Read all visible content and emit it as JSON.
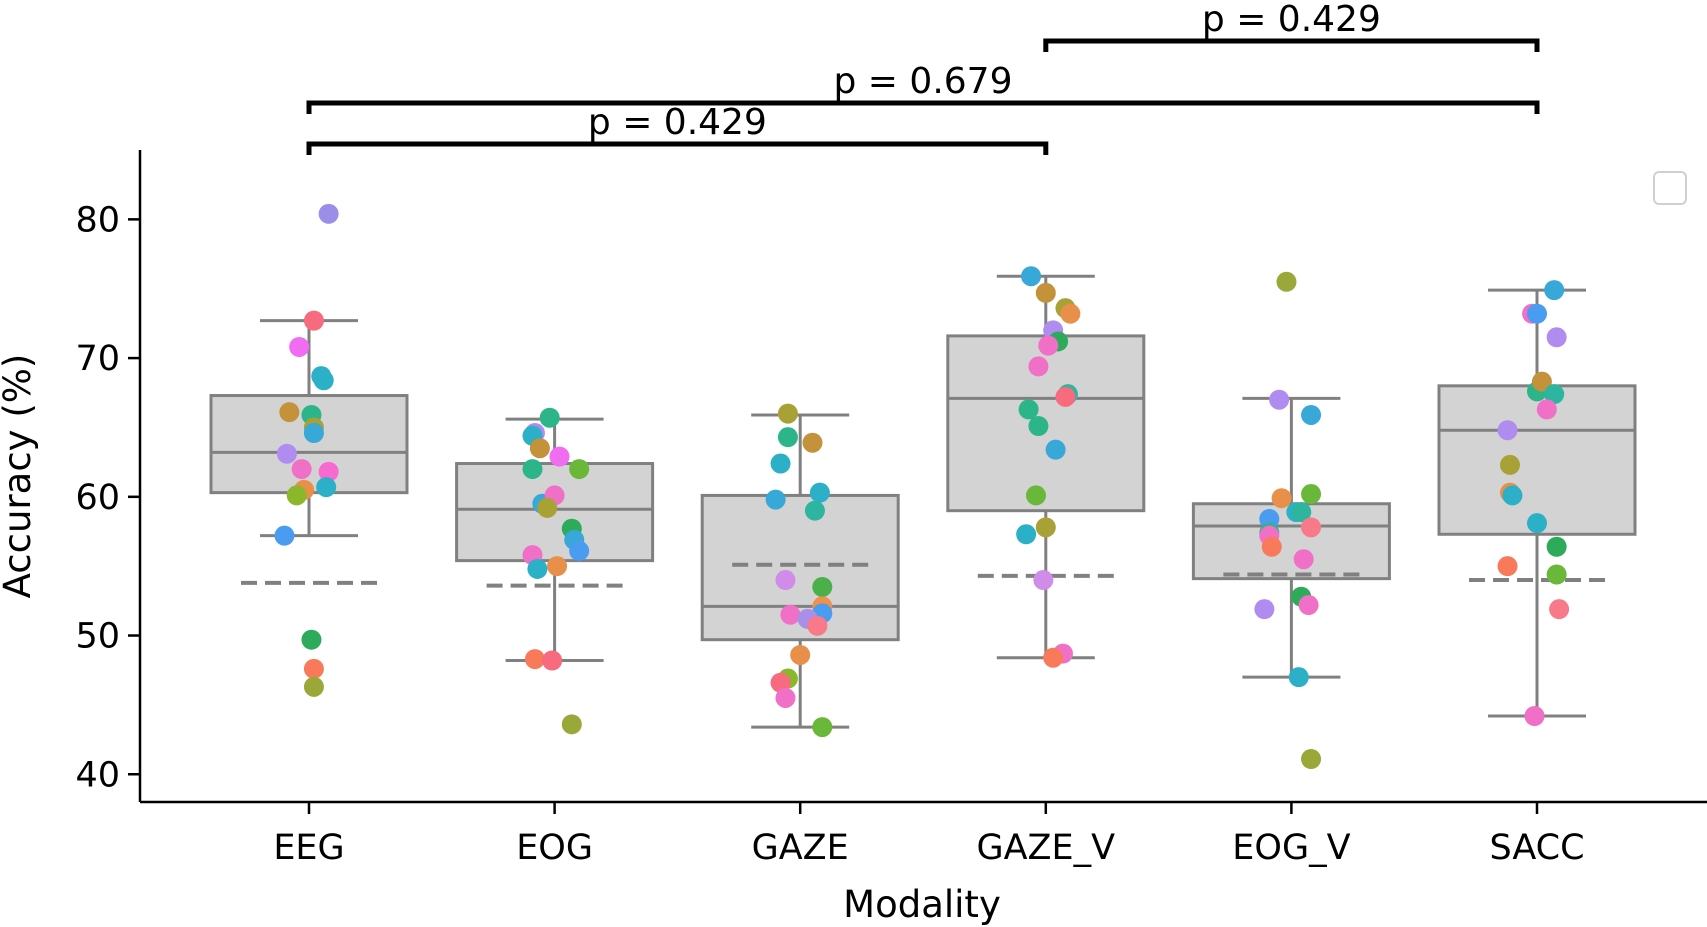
{
  "chart_data": {
    "type": "box",
    "xlabel": "Modality",
    "ylabel": "Accuracy (%)",
    "ylim": [
      38,
      85
    ],
    "yticks": [
      40,
      50,
      60,
      70,
      80
    ],
    "categories": [
      "EEG",
      "EOG",
      "GAZE",
      "GAZE_V",
      "EOG_V",
      "SACC"
    ],
    "boxes": [
      {
        "whisker_low": 57.2,
        "q1": 60.3,
        "median": 63.2,
        "q3": 67.3,
        "whisker_high": 72.7,
        "chance": 53.8
      },
      {
        "whisker_low": 48.2,
        "q1": 55.4,
        "median": 59.1,
        "q3": 62.4,
        "whisker_high": 65.6,
        "chance": 53.6
      },
      {
        "whisker_low": 43.4,
        "q1": 49.7,
        "median": 52.1,
        "q3": 60.1,
        "whisker_high": 65.9,
        "chance": 55.1
      },
      {
        "whisker_low": 48.4,
        "q1": 59.0,
        "median": 67.1,
        "q3": 71.6,
        "whisker_high": 75.9,
        "chance": 54.3
      },
      {
        "whisker_low": 47.0,
        "q1": 54.1,
        "median": 57.9,
        "q3": 59.5,
        "whisker_high": 67.1,
        "chance": 54.4
      },
      {
        "whisker_low": 44.2,
        "q1": 57.3,
        "median": 64.8,
        "q3": 68.0,
        "whisker_high": 74.9,
        "chance": 54.0
      }
    ],
    "points": [
      [
        {
          "offset": 0.08,
          "y": 80.4,
          "color": "#9a8ee8"
        },
        {
          "offset": 0.02,
          "y": 72.7,
          "color": "#f86a7e"
        },
        {
          "offset": -0.04,
          "y": 70.8,
          "color": "#f06cf0"
        },
        {
          "offset": 0.05,
          "y": 68.7,
          "color": "#2bb0c8"
        },
        {
          "offset": 0.06,
          "y": 68.4,
          "color": "#2bb0c8"
        },
        {
          "offset": -0.08,
          "y": 66.1,
          "color": "#c4923a"
        },
        {
          "offset": 0.01,
          "y": 65.9,
          "color": "#2db58a"
        },
        {
          "offset": 0.02,
          "y": 65.0,
          "color": "#a8a236"
        },
        {
          "offset": 0.02,
          "y": 64.6,
          "color": "#38a8d8"
        },
        {
          "offset": -0.09,
          "y": 63.1,
          "color": "#b08cf0"
        },
        {
          "offset": -0.03,
          "y": 62.0,
          "color": "#f070c8"
        },
        {
          "offset": 0.08,
          "y": 61.8,
          "color": "#f86ad0"
        },
        {
          "offset": 0.07,
          "y": 60.7,
          "color": "#2bb0c8"
        },
        {
          "offset": -0.02,
          "y": 60.5,
          "color": "#e8904a"
        },
        {
          "offset": -0.05,
          "y": 60.1,
          "color": "#8ab82a"
        },
        {
          "offset": -0.1,
          "y": 57.2,
          "color": "#4a9cf0"
        },
        {
          "offset": 0.01,
          "y": 49.7,
          "color": "#2daa5a"
        },
        {
          "offset": 0.02,
          "y": 47.6,
          "color": "#f87a5a"
        },
        {
          "offset": 0.02,
          "y": 46.3,
          "color": "#9aa83a"
        }
      ],
      [
        {
          "offset": -0.08,
          "y": 64.6,
          "color": "#b08cf0"
        },
        {
          "offset": -0.09,
          "y": 64.4,
          "color": "#2bb0c8"
        },
        {
          "offset": -0.06,
          "y": 63.5,
          "color": "#c4923a"
        },
        {
          "offset": 0.02,
          "y": 62.9,
          "color": "#f06cf0"
        },
        {
          "offset": -0.09,
          "y": 62.0,
          "color": "#2db58a"
        },
        {
          "offset": 0.1,
          "y": 62.0,
          "color": "#6ab83a"
        },
        {
          "offset": -0.05,
          "y": 59.5,
          "color": "#38a8d8"
        },
        {
          "offset": 0.0,
          "y": 60.1,
          "color": "#f070c8"
        },
        {
          "offset": -0.03,
          "y": 59.2,
          "color": "#a8a236"
        },
        {
          "offset": 0.07,
          "y": 57.7,
          "color": "#2daa5a"
        },
        {
          "offset": 0.08,
          "y": 56.9,
          "color": "#38a8d8"
        },
        {
          "offset": 0.1,
          "y": 56.1,
          "color": "#4a9cf0"
        },
        {
          "offset": -0.09,
          "y": 55.8,
          "color": "#f070c8"
        },
        {
          "offset": 0.01,
          "y": 55.0,
          "color": "#e8904a"
        },
        {
          "offset": -0.07,
          "y": 54.8,
          "color": "#2bb0c8"
        },
        {
          "offset": -0.08,
          "y": 48.3,
          "color": "#f87a5a"
        },
        {
          "offset": -0.01,
          "y": 48.2,
          "color": "#f86a7e"
        },
        {
          "offset": 0.07,
          "y": 43.6,
          "color": "#9aa83a"
        },
        {
          "offset": -0.02,
          "y": 65.7,
          "color": "#2db58a"
        }
      ],
      [
        {
          "offset": -0.05,
          "y": 66.0,
          "color": "#a8a236"
        },
        {
          "offset": -0.05,
          "y": 64.3,
          "color": "#2db58a"
        },
        {
          "offset": 0.05,
          "y": 63.9,
          "color": "#c4923a"
        },
        {
          "offset": -0.08,
          "y": 62.4,
          "color": "#2bb0c8"
        },
        {
          "offset": -0.1,
          "y": 59.8,
          "color": "#38a8d8"
        },
        {
          "offset": 0.08,
          "y": 60.3,
          "color": "#2bb0c8"
        },
        {
          "offset": 0.06,
          "y": 59.0,
          "color": "#2db5a0"
        },
        {
          "offset": -0.06,
          "y": 54.0,
          "color": "#d08ce8"
        },
        {
          "offset": 0.09,
          "y": 53.5,
          "color": "#4ab04a"
        },
        {
          "offset": 0.09,
          "y": 52.1,
          "color": "#f0904a"
        },
        {
          "offset": 0.09,
          "y": 51.6,
          "color": "#4a9cf0"
        },
        {
          "offset": -0.04,
          "y": 51.5,
          "color": "#f070c8"
        },
        {
          "offset": 0.03,
          "y": 51.2,
          "color": "#a890e8"
        },
        {
          "offset": 0.07,
          "y": 50.7,
          "color": "#f87a8a"
        },
        {
          "offset": 0.0,
          "y": 48.6,
          "color": "#e8904a"
        },
        {
          "offset": -0.05,
          "y": 46.9,
          "color": "#8ab82a"
        },
        {
          "offset": -0.08,
          "y": 46.6,
          "color": "#f86a7e"
        },
        {
          "offset": -0.06,
          "y": 45.5,
          "color": "#f070c8"
        },
        {
          "offset": 0.09,
          "y": 43.4,
          "color": "#6ab83a"
        }
      ],
      [
        {
          "offset": -0.06,
          "y": 75.9,
          "color": "#38a8d8"
        },
        {
          "offset": 0.0,
          "y": 74.7,
          "color": "#c4923a"
        },
        {
          "offset": 0.08,
          "y": 73.6,
          "color": "#a8a236"
        },
        {
          "offset": 0.1,
          "y": 73.2,
          "color": "#e8904a"
        },
        {
          "offset": 0.03,
          "y": 72.0,
          "color": "#b08cf0"
        },
        {
          "offset": 0.05,
          "y": 71.2,
          "color": "#2daa5a"
        },
        {
          "offset": 0.01,
          "y": 70.9,
          "color": "#f070c8"
        },
        {
          "offset": -0.03,
          "y": 69.4,
          "color": "#f070c8"
        },
        {
          "offset": 0.09,
          "y": 67.4,
          "color": "#2db5a0"
        },
        {
          "offset": 0.08,
          "y": 67.2,
          "color": "#f86a7e"
        },
        {
          "offset": -0.07,
          "y": 66.3,
          "color": "#2db58a"
        },
        {
          "offset": -0.03,
          "y": 65.1,
          "color": "#2db58a"
        },
        {
          "offset": 0.04,
          "y": 63.4,
          "color": "#38a8d8"
        },
        {
          "offset": -0.04,
          "y": 60.1,
          "color": "#6ab83a"
        },
        {
          "offset": 0.0,
          "y": 57.8,
          "color": "#a8a236"
        },
        {
          "offset": -0.08,
          "y": 57.3,
          "color": "#2bb0c8"
        },
        {
          "offset": -0.01,
          "y": 54.0,
          "color": "#d08ce8"
        },
        {
          "offset": 0.07,
          "y": 48.7,
          "color": "#f070c8"
        },
        {
          "offset": 0.03,
          "y": 48.4,
          "color": "#f87a5a"
        }
      ],
      [
        {
          "offset": -0.02,
          "y": 75.5,
          "color": "#9aa83a"
        },
        {
          "offset": -0.05,
          "y": 67.0,
          "color": "#b08cf0"
        },
        {
          "offset": 0.08,
          "y": 65.9,
          "color": "#38a8d8"
        },
        {
          "offset": 0.08,
          "y": 60.2,
          "color": "#6ab83a"
        },
        {
          "offset": -0.04,
          "y": 59.9,
          "color": "#e8904a"
        },
        {
          "offset": 0.02,
          "y": 58.9,
          "color": "#2bb0c8"
        },
        {
          "offset": 0.04,
          "y": 58.9,
          "color": "#2db5a0"
        },
        {
          "offset": -0.09,
          "y": 58.4,
          "color": "#4a9cf0"
        },
        {
          "offset": 0.08,
          "y": 57.8,
          "color": "#f87a8a"
        },
        {
          "offset": -0.09,
          "y": 57.4,
          "color": "#2db58a"
        },
        {
          "offset": -0.09,
          "y": 57.2,
          "color": "#f070c8"
        },
        {
          "offset": -0.08,
          "y": 56.4,
          "color": "#f87a5a"
        },
        {
          "offset": 0.05,
          "y": 55.5,
          "color": "#f070c8"
        },
        {
          "offset": 0.04,
          "y": 52.8,
          "color": "#2daa5a"
        },
        {
          "offset": 0.07,
          "y": 52.2,
          "color": "#f070c8"
        },
        {
          "offset": -0.11,
          "y": 51.9,
          "color": "#b08cf0"
        },
        {
          "offset": 0.03,
          "y": 47.0,
          "color": "#2bb0c8"
        },
        {
          "offset": 0.08,
          "y": 41.1,
          "color": "#9aa83a"
        }
      ],
      [
        {
          "offset": 0.07,
          "y": 74.9,
          "color": "#38a8d8"
        },
        {
          "offset": -0.02,
          "y": 73.2,
          "color": "#f070c8"
        },
        {
          "offset": 0.0,
          "y": 73.2,
          "color": "#4a9cf0"
        },
        {
          "offset": 0.08,
          "y": 71.5,
          "color": "#b08cf0"
        },
        {
          "offset": 0.0,
          "y": 67.6,
          "color": "#2db58a"
        },
        {
          "offset": 0.02,
          "y": 68.3,
          "color": "#c4923a"
        },
        {
          "offset": 0.07,
          "y": 67.4,
          "color": "#2db5a0"
        },
        {
          "offset": 0.04,
          "y": 66.3,
          "color": "#f070c8"
        },
        {
          "offset": -0.12,
          "y": 64.8,
          "color": "#b08cf0"
        },
        {
          "offset": -0.11,
          "y": 62.3,
          "color": "#a8a236"
        },
        {
          "offset": -0.11,
          "y": 60.3,
          "color": "#e8904a"
        },
        {
          "offset": -0.1,
          "y": 60.1,
          "color": "#2bb0c8"
        },
        {
          "offset": 0.0,
          "y": 58.1,
          "color": "#2bb0c8"
        },
        {
          "offset": 0.08,
          "y": 56.4,
          "color": "#2daa5a"
        },
        {
          "offset": -0.12,
          "y": 55.0,
          "color": "#f87a5a"
        },
        {
          "offset": 0.08,
          "y": 54.4,
          "color": "#6ab83a"
        },
        {
          "offset": 0.09,
          "y": 51.9,
          "color": "#f87a8a"
        },
        {
          "offset": -0.01,
          "y": 44.2,
          "color": "#f070c8"
        }
      ]
    ],
    "annotations": [
      {
        "from": 0,
        "to": 3,
        "level": 0,
        "label": "p = 0.429"
      },
      {
        "from": 0,
        "to": 5,
        "level": 1,
        "label": "p = 0.679"
      },
      {
        "from": 3,
        "to": 5,
        "level": 2,
        "label": "p = 0.429"
      }
    ],
    "style": {
      "box_fill": "#d3d3d3",
      "box_stroke": "#808080",
      "chance_color": "#808080",
      "bracket_color": "#000000"
    },
    "legend": {
      "location": "top-right",
      "entries": []
    }
  }
}
